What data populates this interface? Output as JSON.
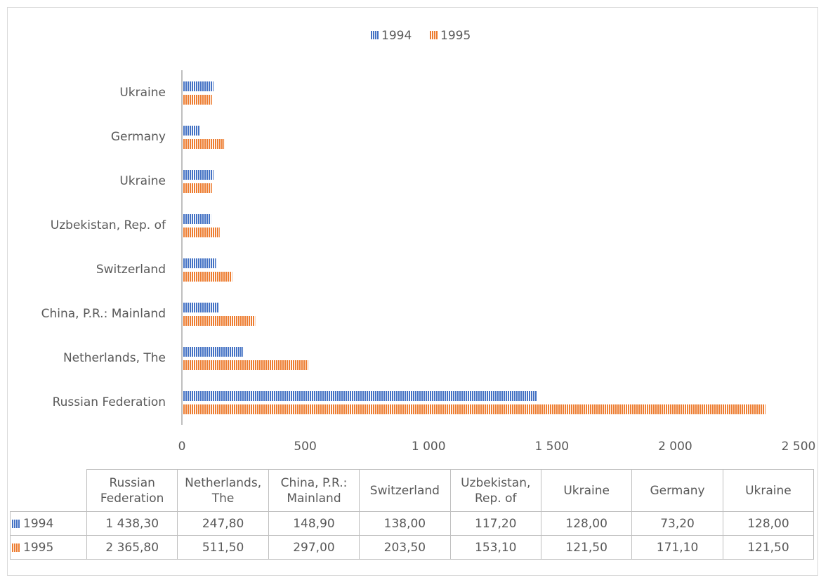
{
  "chart_data": {
    "type": "bar",
    "orientation": "horizontal",
    "categories": [
      "Russian Federation",
      "Netherlands, The",
      "China, P.R.: Mainland",
      "Switzerland",
      "Uzbekistan, Rep. of",
      "Ukraine",
      "Germany",
      "Ukraine"
    ],
    "series": [
      {
        "name": "1994",
        "color": "#4472c4",
        "values": [
          1438.3,
          247.8,
          148.9,
          138.0,
          117.2,
          128.0,
          73.2,
          128.0
        ],
        "value_labels": [
          "1 438,30",
          "247,80",
          "148,90",
          "138,00",
          "117,20",
          "128,00",
          "73,20",
          "128,00"
        ]
      },
      {
        "name": "1995",
        "color": "#ed7d31",
        "values": [
          2365.8,
          511.5,
          297.0,
          203.5,
          153.1,
          121.5,
          171.1,
          121.5
        ],
        "value_labels": [
          "2 365,80",
          "511,50",
          "297,00",
          "203,50",
          "153,10",
          "121,50",
          "171,10",
          "121,50"
        ]
      }
    ],
    "xlim": [
      0,
      2500
    ],
    "xticks": [
      0,
      500,
      {
        "value": 1000,
        "label": "1 000"
      },
      {
        "value": 1500,
        "label": "1 500"
      },
      {
        "value": 2000,
        "label": "2 000"
      },
      {
        "value": 2500,
        "label": "2 500"
      }
    ],
    "legend": "top",
    "grid": false,
    "data_table": true
  }
}
